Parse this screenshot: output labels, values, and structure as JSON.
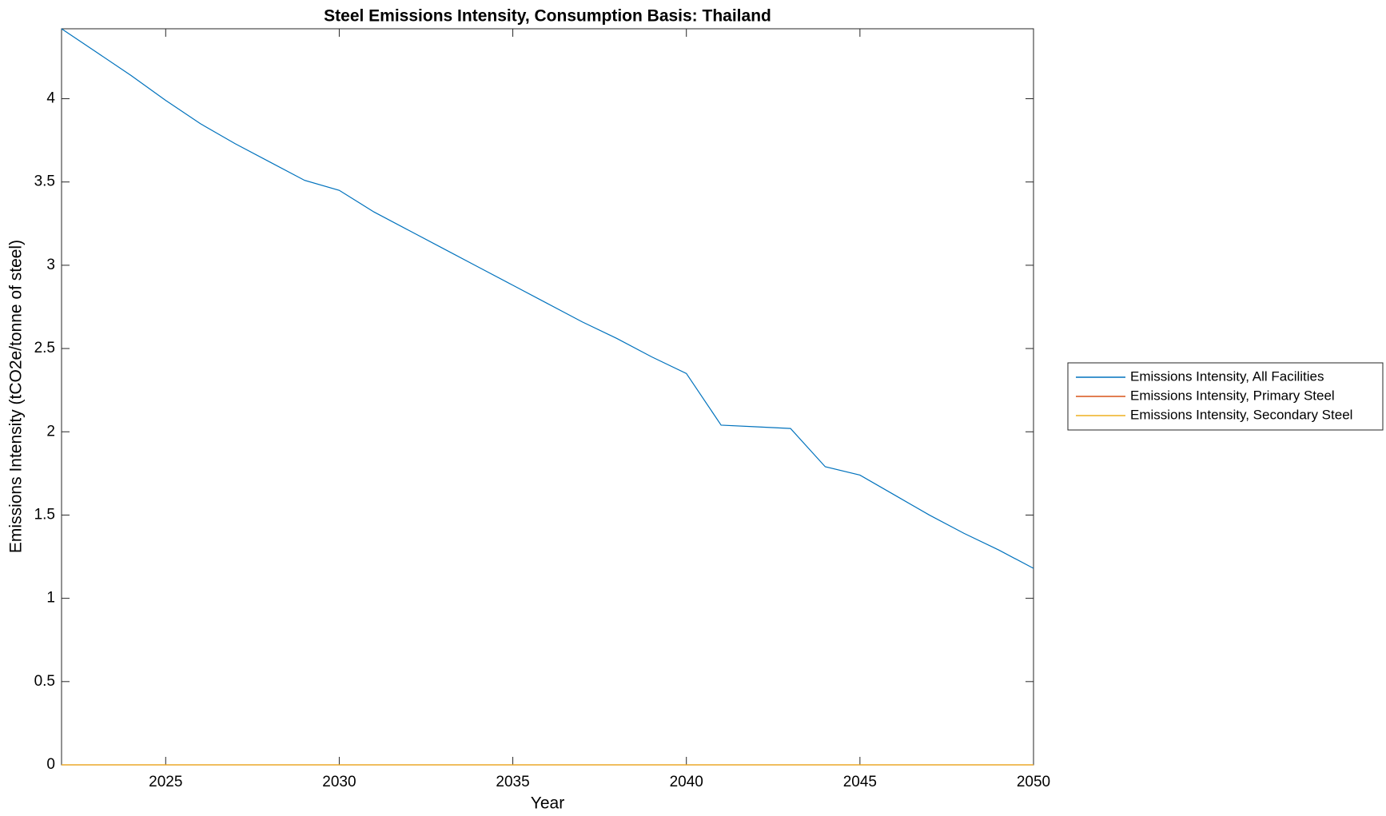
{
  "chart_data": {
    "type": "line",
    "title": "Steel Emissions Intensity, Consumption Basis: Thailand",
    "x_label": "Year",
    "y_label": "Emissions Intensity (tCO2e/tonne of steel)",
    "x": [
      2022,
      2023,
      2024,
      2025,
      2026,
      2027,
      2028,
      2029,
      2030,
      2031,
      2032,
      2033,
      2034,
      2035,
      2036,
      2037,
      2038,
      2039,
      2040,
      2041,
      2042,
      2043,
      2044,
      2045,
      2046,
      2047,
      2048,
      2049,
      2050
    ],
    "series": [
      {
        "name": "Emissions Intensity, All Facilities",
        "color": "#0072bd",
        "values": [
          4.42,
          4.28,
          4.14,
          3.99,
          3.85,
          3.73,
          3.62,
          3.51,
          3.45,
          3.32,
          3.21,
          3.1,
          2.99,
          2.88,
          2.77,
          2.66,
          2.56,
          2.45,
          2.35,
          2.04,
          2.03,
          2.02,
          1.79,
          1.74,
          1.62,
          1.5,
          1.39,
          1.29,
          1.18
        ]
      },
      {
        "name": "Emissions Intensity, Primary Steel",
        "color": "#d95319",
        "values": [
          0,
          0,
          0,
          0,
          0,
          0,
          0,
          0,
          0,
          0,
          0,
          0,
          0,
          0,
          0,
          0,
          0,
          0,
          0,
          0,
          0,
          0,
          0,
          0,
          0,
          0,
          0,
          0,
          0
        ]
      },
      {
        "name": "Emissions Intensity, Secondary Steel",
        "color": "#edb120",
        "values": [
          0,
          0,
          0,
          0,
          0,
          0,
          0,
          0,
          0,
          0,
          0,
          0,
          0,
          0,
          0,
          0,
          0,
          0,
          0,
          0,
          0,
          0,
          0,
          0,
          0,
          0,
          0,
          0,
          0
        ]
      }
    ],
    "xlim": [
      2022,
      2050
    ],
    "xticks": [
      2025,
      2030,
      2035,
      2040,
      2045,
      2050
    ],
    "ylim": [
      0,
      4.42
    ],
    "yticks": [
      0,
      0.5,
      1,
      1.5,
      2,
      2.5,
      3,
      3.5,
      4
    ],
    "grid": false,
    "legend": "eastoutside"
  }
}
